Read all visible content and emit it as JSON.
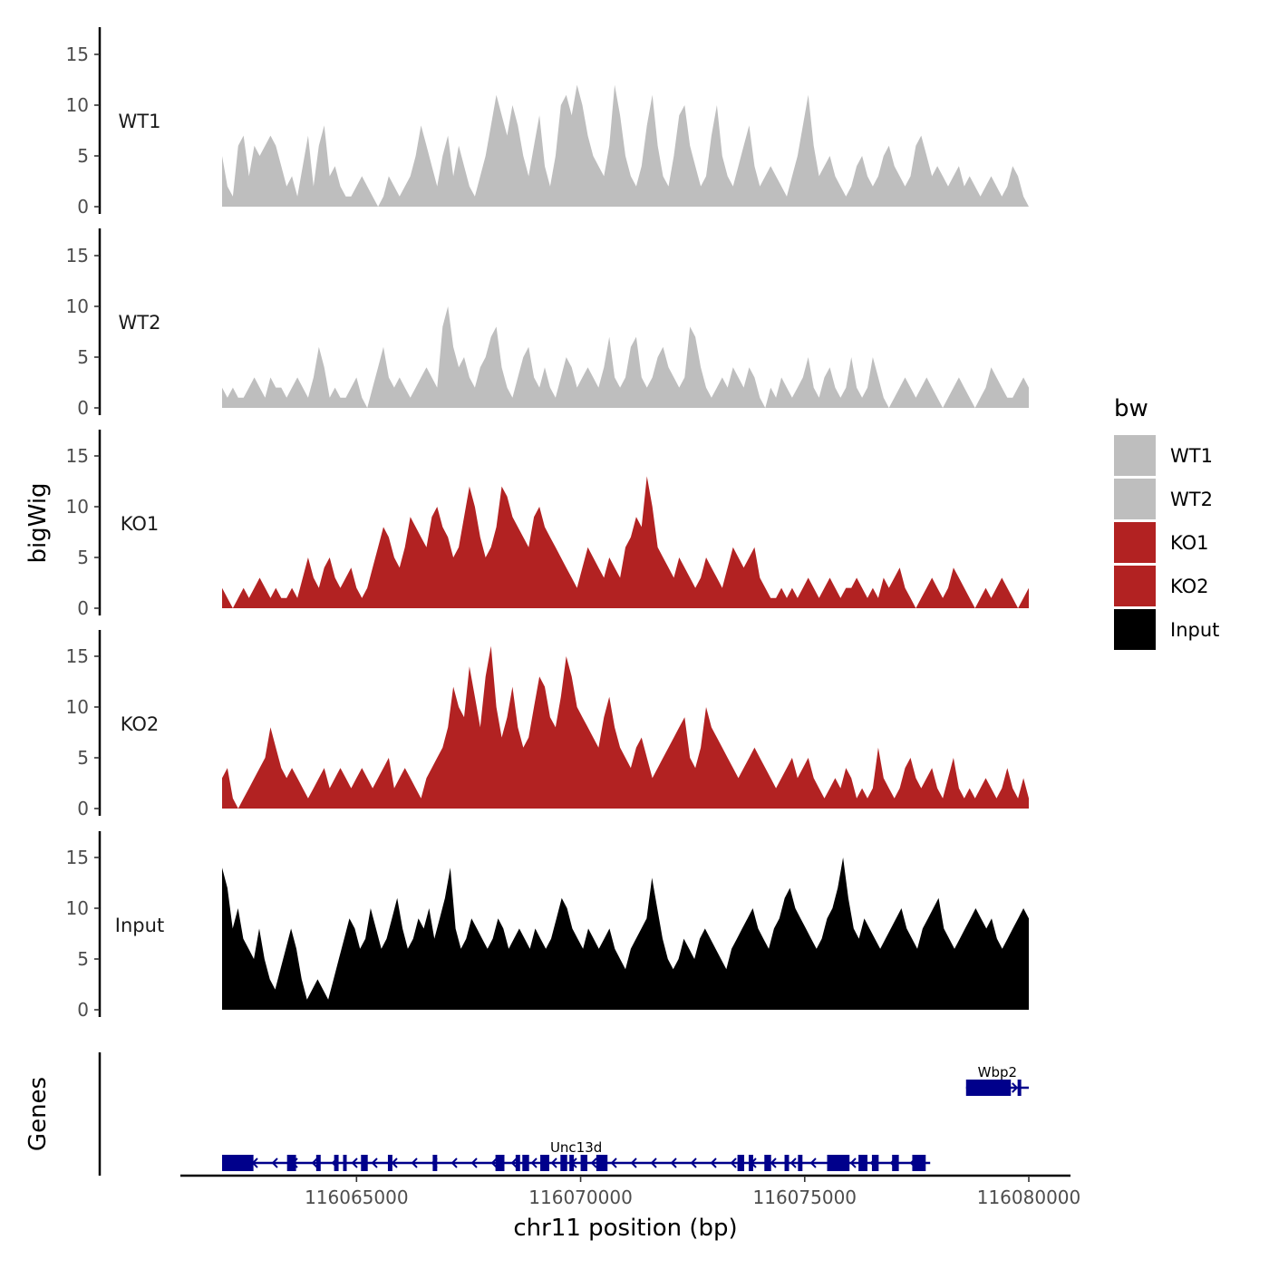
{
  "chart_data": {
    "type": "area",
    "title": "",
    "xlabel": "chr11 position (bp)",
    "ylabel": "bigWig",
    "genes_label": "Genes",
    "chromosome": "chr11",
    "x_range": [
      116062000,
      116080000
    ],
    "x_ticks": [
      116065000,
      116070000,
      116075000,
      116080000
    ],
    "x_tick_labels": [
      "116065000",
      "116070000",
      "116075000",
      "116080000"
    ],
    "y_range": [
      0,
      17
    ],
    "y_ticks": [
      0,
      5,
      10,
      15
    ],
    "y_tick_labels": [
      "0",
      "5",
      "10",
      "15"
    ],
    "legend": {
      "title": "bw",
      "position": "right",
      "entries": [
        {
          "label": "WT1",
          "color": "#bebebe"
        },
        {
          "label": "WT2",
          "color": "#bebebe"
        },
        {
          "label": "KO1",
          "color": "#b22222"
        },
        {
          "label": "KO2",
          "color": "#b22222"
        },
        {
          "label": "Input",
          "color": "#000000"
        }
      ]
    },
    "series": [
      {
        "name": "WT1",
        "color": "#bebebe",
        "x_start": 116062000,
        "x_end": 116080000,
        "values": [
          5,
          2,
          1,
          6,
          7,
          3,
          6,
          5,
          6,
          7,
          6,
          4,
          2,
          3,
          1,
          4,
          7,
          2,
          6,
          8,
          3,
          4,
          2,
          1,
          1,
          2,
          3,
          2,
          1,
          0,
          1,
          3,
          2,
          1,
          2,
          3,
          5,
          8,
          6,
          4,
          2,
          5,
          7,
          3,
          6,
          4,
          2,
          1,
          3,
          5,
          8,
          11,
          9,
          7,
          10,
          8,
          5,
          3,
          6,
          9,
          4,
          2,
          5,
          10,
          11,
          9,
          12,
          10,
          7,
          5,
          4,
          3,
          6,
          12,
          9,
          5,
          3,
          2,
          4,
          8,
          11,
          6,
          3,
          2,
          5,
          9,
          10,
          6,
          4,
          2,
          3,
          7,
          10,
          5,
          3,
          2,
          4,
          6,
          8,
          4,
          2,
          3,
          4,
          3,
          2,
          1,
          3,
          5,
          8,
          11,
          6,
          3,
          4,
          5,
          3,
          2,
          1,
          2,
          4,
          5,
          3,
          2,
          3,
          5,
          6,
          4,
          3,
          2,
          3,
          6,
          7,
          5,
          3,
          4,
          3,
          2,
          3,
          4,
          2,
          3,
          2,
          1,
          2,
          3,
          2,
          1,
          2,
          4,
          3,
          1,
          0
        ]
      },
      {
        "name": "WT2",
        "color": "#bebebe",
        "x_start": 116062000,
        "x_end": 116080000,
        "values": [
          2,
          1,
          2,
          1,
          1,
          2,
          3,
          2,
          1,
          3,
          2,
          2,
          1,
          2,
          3,
          2,
          1,
          3,
          6,
          4,
          1,
          2,
          1,
          1,
          2,
          3,
          1,
          0,
          2,
          4,
          6,
          3,
          2,
          3,
          2,
          1,
          2,
          3,
          4,
          3,
          2,
          8,
          10,
          6,
          4,
          5,
          3,
          2,
          4,
          5,
          7,
          8,
          4,
          2,
          1,
          3,
          5,
          6,
          3,
          2,
          4,
          2,
          1,
          3,
          5,
          4,
          2,
          3,
          4,
          3,
          2,
          4,
          7,
          3,
          2,
          3,
          6,
          7,
          3,
          2,
          3,
          5,
          6,
          4,
          3,
          2,
          3,
          8,
          7,
          4,
          2,
          1,
          2,
          3,
          2,
          4,
          3,
          2,
          4,
          3,
          1,
          0,
          2,
          1,
          3,
          2,
          1,
          2,
          3,
          5,
          2,
          1,
          3,
          4,
          2,
          1,
          2,
          5,
          2,
          1,
          2,
          5,
          3,
          1,
          0,
          1,
          2,
          3,
          2,
          1,
          2,
          3,
          2,
          1,
          0,
          1,
          2,
          3,
          2,
          1,
          0,
          1,
          2,
          4,
          3,
          2,
          1,
          1,
          2,
          3,
          2
        ]
      },
      {
        "name": "KO1",
        "color": "#b22222",
        "x_start": 116062000,
        "x_end": 116080000,
        "values": [
          2,
          1,
          0,
          1,
          2,
          1,
          2,
          3,
          2,
          1,
          2,
          1,
          1,
          2,
          1,
          3,
          5,
          3,
          2,
          4,
          5,
          3,
          2,
          3,
          4,
          2,
          1,
          2,
          4,
          6,
          8,
          7,
          5,
          4,
          6,
          9,
          8,
          7,
          6,
          9,
          10,
          8,
          7,
          5,
          6,
          9,
          12,
          10,
          7,
          5,
          6,
          8,
          12,
          11,
          9,
          8,
          7,
          6,
          9,
          10,
          8,
          7,
          6,
          5,
          4,
          3,
          2,
          4,
          6,
          5,
          4,
          3,
          5,
          4,
          3,
          6,
          7,
          9,
          8,
          13,
          10,
          6,
          5,
          4,
          3,
          5,
          4,
          3,
          2,
          3,
          5,
          4,
          3,
          2,
          4,
          6,
          5,
          4,
          5,
          6,
          3,
          2,
          1,
          1,
          2,
          1,
          2,
          1,
          2,
          3,
          2,
          1,
          2,
          3,
          2,
          1,
          2,
          2,
          3,
          2,
          1,
          2,
          1,
          3,
          2,
          3,
          4,
          2,
          1,
          0,
          1,
          2,
          3,
          2,
          1,
          2,
          4,
          3,
          2,
          1,
          0,
          1,
          2,
          1,
          2,
          3,
          2,
          1,
          0,
          1,
          2
        ]
      },
      {
        "name": "KO2",
        "color": "#b22222",
        "x_start": 116062000,
        "x_end": 116080000,
        "values": [
          3,
          4,
          1,
          0,
          1,
          2,
          3,
          4,
          5,
          8,
          6,
          4,
          3,
          4,
          3,
          2,
          1,
          2,
          3,
          4,
          2,
          3,
          4,
          3,
          2,
          3,
          4,
          3,
          2,
          3,
          4,
          5,
          2,
          3,
          4,
          3,
          2,
          1,
          3,
          4,
          5,
          6,
          8,
          12,
          10,
          9,
          14,
          11,
          8,
          13,
          16,
          10,
          7,
          9,
          12,
          8,
          6,
          7,
          10,
          13,
          12,
          9,
          8,
          11,
          15,
          13,
          10,
          9,
          8,
          7,
          6,
          9,
          11,
          8,
          6,
          5,
          4,
          6,
          7,
          5,
          3,
          4,
          5,
          6,
          7,
          8,
          9,
          5,
          4,
          6,
          10,
          8,
          7,
          6,
          5,
          4,
          3,
          4,
          5,
          6,
          5,
          4,
          3,
          2,
          3,
          4,
          5,
          3,
          4,
          5,
          3,
          2,
          1,
          2,
          3,
          2,
          4,
          3,
          1,
          2,
          1,
          2,
          6,
          3,
          2,
          1,
          2,
          4,
          5,
          3,
          2,
          3,
          4,
          2,
          1,
          3,
          5,
          2,
          1,
          2,
          1,
          2,
          3,
          2,
          1,
          2,
          4,
          2,
          1,
          3,
          1
        ]
      },
      {
        "name": "Input",
        "color": "#000000",
        "x_start": 116062000,
        "x_end": 116080000,
        "values": [
          14,
          12,
          8,
          10,
          7,
          6,
          5,
          8,
          5,
          3,
          2,
          4,
          6,
          8,
          6,
          3,
          1,
          2,
          3,
          2,
          1,
          3,
          5,
          7,
          9,
          8,
          6,
          7,
          10,
          8,
          6,
          7,
          9,
          11,
          8,
          6,
          7,
          9,
          8,
          10,
          7,
          9,
          11,
          14,
          8,
          6,
          7,
          9,
          8,
          7,
          6,
          7,
          9,
          8,
          6,
          7,
          8,
          7,
          6,
          8,
          7,
          6,
          7,
          9,
          11,
          10,
          8,
          7,
          6,
          8,
          7,
          6,
          7,
          8,
          6,
          5,
          4,
          6,
          7,
          8,
          9,
          13,
          10,
          7,
          5,
          4,
          5,
          7,
          6,
          5,
          7,
          8,
          7,
          6,
          5,
          4,
          6,
          7,
          8,
          9,
          10,
          8,
          7,
          6,
          8,
          9,
          11,
          12,
          10,
          9,
          8,
          7,
          6,
          7,
          9,
          10,
          12,
          15,
          11,
          8,
          7,
          9,
          8,
          7,
          6,
          7,
          8,
          9,
          10,
          8,
          7,
          6,
          8,
          9,
          10,
          11,
          8,
          7,
          6,
          7,
          8,
          9,
          10,
          9,
          8,
          9,
          7,
          6,
          7,
          8,
          9,
          10,
          9
        ]
      }
    ],
    "genes": [
      {
        "name": "Unc13d",
        "strand": "-",
        "start": 116062000,
        "end": 116077800,
        "exons": [
          [
            116062000,
            116062700
          ],
          [
            116063450,
            116063650
          ],
          [
            116064100,
            116064200
          ],
          [
            116064500,
            116064600
          ],
          [
            116064700,
            116064780
          ],
          [
            116065100,
            116065250
          ],
          [
            116065700,
            116065800
          ],
          [
            116066700,
            116066800
          ],
          [
            116068100,
            116068300
          ],
          [
            116068550,
            116068650
          ],
          [
            116068700,
            116068850
          ],
          [
            116069100,
            116069300
          ],
          [
            116069550,
            116069700
          ],
          [
            116069750,
            116069850
          ],
          [
            116070000,
            116070150
          ],
          [
            116070350,
            116070600
          ],
          [
            116073500,
            116073650
          ],
          [
            116073750,
            116073850
          ],
          [
            116074100,
            116074250
          ],
          [
            116074550,
            116074650
          ],
          [
            116074850,
            116074950
          ],
          [
            116075500,
            116076000
          ],
          [
            116076200,
            116076400
          ],
          [
            116076500,
            116076650
          ],
          [
            116076950,
            116077100
          ],
          [
            116077400,
            116077700
          ]
        ]
      },
      {
        "name": "Wbp2",
        "strand": "+",
        "start": 116078600,
        "end": 116080000,
        "exons": [
          [
            116078600,
            116079600
          ],
          [
            116079750,
            116079800
          ]
        ]
      }
    ]
  }
}
